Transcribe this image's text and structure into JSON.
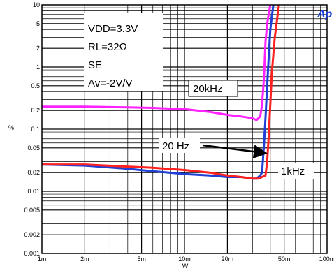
{
  "chart_data": {
    "type": "line",
    "title": "",
    "xlabel": "W",
    "ylabel": "%",
    "xscale": "log",
    "yscale": "log",
    "xlim": [
      0.001,
      0.1
    ],
    "ylim": [
      0.001,
      10
    ],
    "grid": true,
    "x_ticks": [
      {
        "v": 0.001,
        "label": "1m"
      },
      {
        "v": 0.002,
        "label": "2m"
      },
      {
        "v": 0.005,
        "label": "5m"
      },
      {
        "v": 0.01,
        "label": "10m"
      },
      {
        "v": 0.02,
        "label": "20m"
      },
      {
        "v": 0.05,
        "label": "50m"
      },
      {
        "v": 0.1,
        "label": "100m"
      }
    ],
    "y_ticks": [
      {
        "v": 10,
        "label": "10"
      },
      {
        "v": 5,
        "label": "5"
      },
      {
        "v": 2,
        "label": "2"
      },
      {
        "v": 1,
        "label": "1"
      },
      {
        "v": 0.5,
        "label": "0.5"
      },
      {
        "v": 0.2,
        "label": "0.2"
      },
      {
        "v": 0.1,
        "label": "0.1"
      },
      {
        "v": 0.05,
        "label": "0.05"
      },
      {
        "v": 0.02,
        "label": "0.02"
      },
      {
        "v": 0.01,
        "label": "0.01"
      },
      {
        "v": 0.005,
        "label": "0.005"
      },
      {
        "v": 0.002,
        "label": "0.002"
      },
      {
        "v": 0.001,
        "label": "0.001"
      }
    ],
    "conditions": [
      "VDD=3.3V",
      "RL=32Ω",
      "SE",
      "Av=-2V/V"
    ],
    "series": [
      {
        "name": "20kHz",
        "color": "#ff22ff",
        "x": [
          0.001,
          0.002,
          0.004,
          0.006,
          0.01,
          0.015,
          0.02,
          0.025,
          0.03,
          0.032,
          0.034,
          0.035,
          0.036,
          0.0365,
          0.037,
          0.038,
          0.04
        ],
        "y": [
          0.23,
          0.23,
          0.225,
          0.22,
          0.21,
          0.19,
          0.17,
          0.16,
          0.15,
          0.14,
          0.16,
          0.25,
          0.6,
          1.2,
          2.5,
          5,
          10
        ]
      },
      {
        "name": "20 Hz",
        "color": "#1f3fd6",
        "x": [
          0.001,
          0.002,
          0.004,
          0.006,
          0.01,
          0.015,
          0.02,
          0.025,
          0.03,
          0.032,
          0.034,
          0.035,
          0.036,
          0.037,
          0.038,
          0.039,
          0.04,
          0.042
        ],
        "y": [
          0.027,
          0.026,
          0.023,
          0.021,
          0.019,
          0.018,
          0.017,
          0.017,
          0.016,
          0.016,
          0.018,
          0.02,
          0.05,
          0.15,
          0.5,
          1.5,
          4,
          10
        ]
      },
      {
        "name": "1kHz",
        "color": "#ff2020",
        "x": [
          0.001,
          0.002,
          0.004,
          0.006,
          0.01,
          0.015,
          0.02,
          0.025,
          0.03,
          0.033,
          0.035,
          0.037,
          0.038,
          0.039,
          0.04,
          0.041,
          0.043,
          0.046
        ],
        "y": [
          0.027,
          0.027,
          0.025,
          0.024,
          0.022,
          0.02,
          0.018,
          0.017,
          0.016,
          0.016,
          0.017,
          0.018,
          0.03,
          0.08,
          0.25,
          0.8,
          3,
          10
        ]
      }
    ],
    "annotations": [
      {
        "text": "20kHz",
        "series": "20kHz"
      },
      {
        "text": "20 Hz",
        "series": "20 Hz"
      },
      {
        "text": "1kHz",
        "series": "1kHz"
      }
    ],
    "logo": "Ap"
  }
}
